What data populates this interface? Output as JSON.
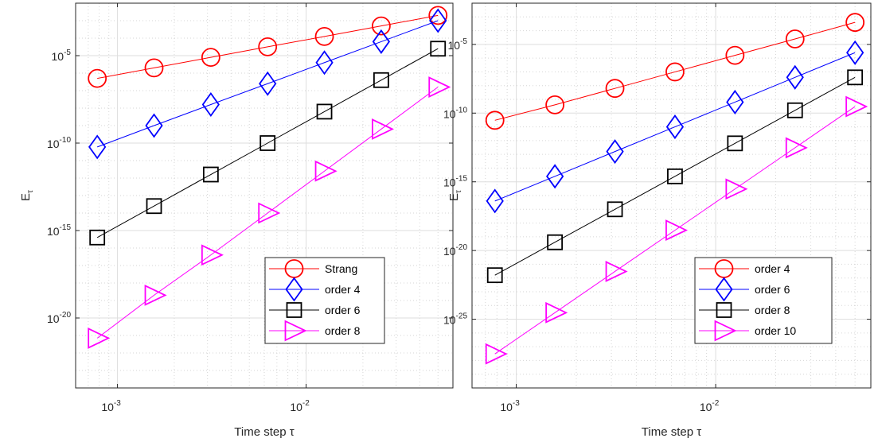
{
  "chart_data": [
    {
      "type": "line",
      "xscale": "log",
      "yscale": "log",
      "xlim": [
        0.0006,
        0.06
      ],
      "ylim": [
        1e-24,
        0.01
      ],
      "grid": true,
      "minor_grid": true,
      "xlabel": "Time step τ",
      "ylabel": "E",
      "ylabel_sub": "τ",
      "x_ticks": [
        {
          "value": 0.001,
          "base": "10",
          "exp": "-3"
        },
        {
          "value": 0.01,
          "base": "10",
          "exp": "-2"
        }
      ],
      "y_ticks": [
        {
          "value": 1e-05,
          "base": "10",
          "exp": "-5"
        },
        {
          "value": 1e-10,
          "base": "10",
          "exp": "-10"
        },
        {
          "value": 1e-15,
          "base": "10",
          "exp": "-15"
        },
        {
          "value": 1e-20,
          "base": "10",
          "exp": "-20"
        }
      ],
      "legend_position": "lower-right",
      "x": [
        0.00078125,
        0.0015625,
        0.003125,
        0.00625,
        0.0125,
        0.025,
        0.05
      ],
      "series": [
        {
          "name": "Strang",
          "color": "#ff0000",
          "marker": "circle",
          "values": [
            5e-07,
            2e-06,
            8e-06,
            3.2e-05,
            0.000125,
            0.0005,
            0.002
          ]
        },
        {
          "name": "order 4",
          "color": "#0000ff",
          "marker": "diamond",
          "values": [
            6e-11,
            1e-09,
            1.6e-08,
            2.5e-07,
            4e-06,
            6.3e-05,
            0.001
          ]
        },
        {
          "name": "order 6",
          "color": "#000000",
          "marker": "square",
          "values": [
            4e-16,
            2.5e-14,
            1.6e-12,
            1e-10,
            6.3e-09,
            4e-07,
            2.5e-05
          ]
        },
        {
          "name": "order 8",
          "color": "#ff00ff",
          "marker": "triangle-right",
          "values": [
            7e-22,
            2e-19,
            4e-17,
            1e-14,
            2.5e-12,
            6.3e-10,
            1.6e-07
          ]
        }
      ]
    },
    {
      "type": "line",
      "xscale": "log",
      "yscale": "log",
      "xlim": [
        0.0006,
        0.06
      ],
      "ylim": [
        1e-30,
        0.01
      ],
      "grid": true,
      "minor_grid": true,
      "xlabel": "Time step τ",
      "ylabel": "E",
      "ylabel_sub": "τ",
      "x_ticks": [
        {
          "value": 0.001,
          "base": "10",
          "exp": "-3"
        },
        {
          "value": 0.01,
          "base": "10",
          "exp": "-2"
        }
      ],
      "y_ticks": [
        {
          "value": 1e-05,
          "base": "10",
          "exp": "-5"
        },
        {
          "value": 1e-10,
          "base": "10",
          "exp": "-10"
        },
        {
          "value": 1e-15,
          "base": "10",
          "exp": "-15"
        },
        {
          "value": 1e-20,
          "base": "10",
          "exp": "-20"
        },
        {
          "value": 1e-25,
          "base": "10",
          "exp": "-25"
        }
      ],
      "legend_position": "lower-right",
      "x": [
        0.00078125,
        0.0015625,
        0.003125,
        0.00625,
        0.0125,
        0.025,
        0.05
      ],
      "series": [
        {
          "name": "order 4",
          "color": "#ff0000",
          "marker": "circle",
          "values": [
            3e-11,
            4e-10,
            6.3e-09,
            1e-07,
            1.6e-06,
            2.5e-05,
            0.0004
          ]
        },
        {
          "name": "order 6",
          "color": "#0000ff",
          "marker": "diamond",
          "values": [
            4e-17,
            2.5e-15,
            1.6e-13,
            1e-11,
            6.3e-10,
            4e-08,
            2.5e-06
          ]
        },
        {
          "name": "order 8",
          "color": "#000000",
          "marker": "square",
          "values": [
            1.6e-22,
            4e-20,
            1e-17,
            2.5e-15,
            6.3e-13,
            1.6e-10,
            4e-08
          ]
        },
        {
          "name": "order 10",
          "color": "#ff00ff",
          "marker": "triangle-right",
          "values": [
            3e-28,
            3e-25,
            3e-22,
            3e-19,
            3e-16,
            3e-13,
            3e-10
          ]
        }
      ]
    }
  ]
}
